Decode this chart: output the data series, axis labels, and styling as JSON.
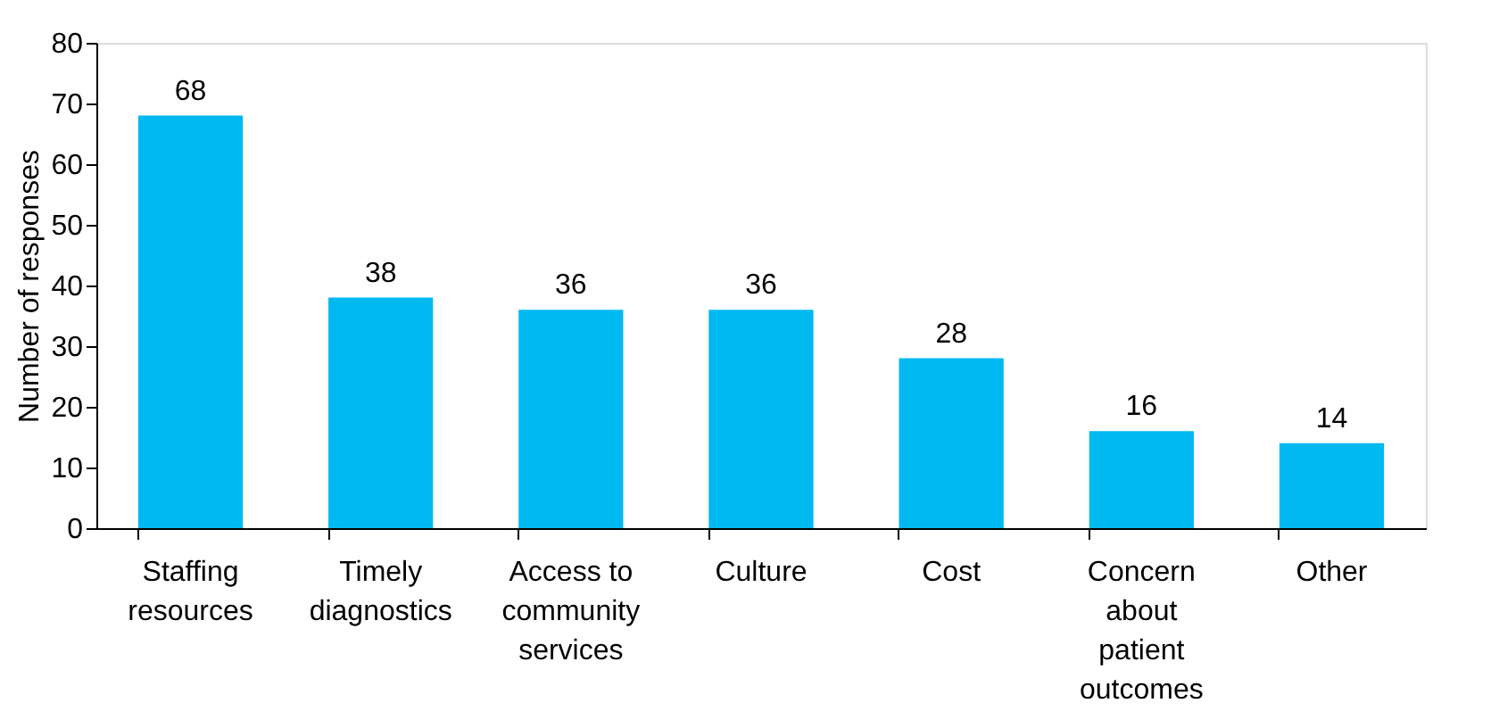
{
  "chart_data": {
    "type": "bar",
    "ylabel": "Number of responses",
    "categories": [
      "Staffing resources",
      "Timely diagnostics",
      "Access to community services",
      "Culture",
      "Cost",
      "Concern about patient outcomes",
      "Other"
    ],
    "values": [
      68,
      38,
      36,
      36,
      28,
      16,
      14
    ],
    "color": "#00b9f1",
    "ylim": [
      0,
      80
    ],
    "yticks": [
      0,
      10,
      20,
      30,
      40,
      50,
      60,
      70,
      80
    ],
    "grid": false,
    "data_labels": true
  }
}
